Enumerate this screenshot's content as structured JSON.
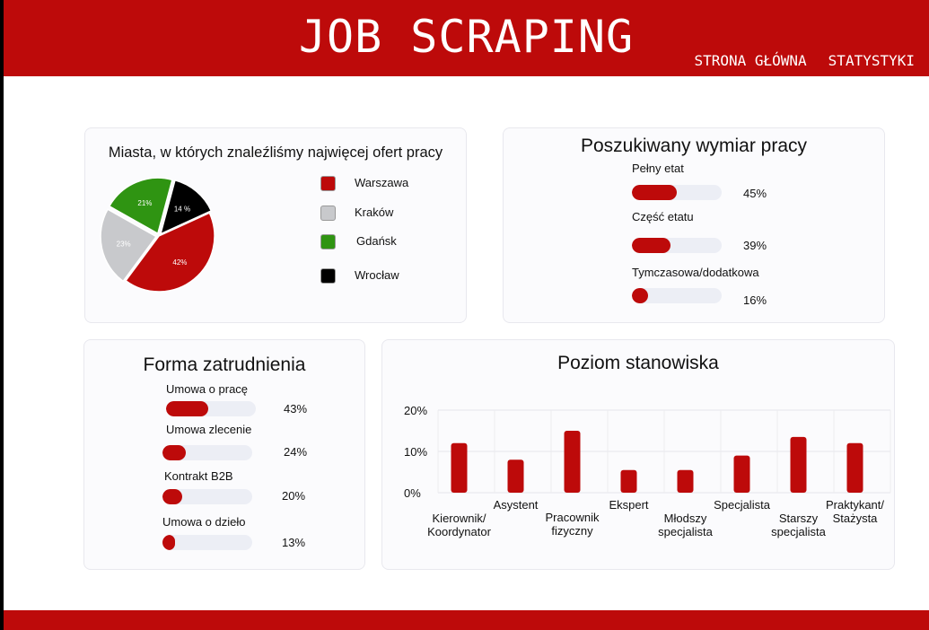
{
  "header": {
    "title": "JOB SCRAPING",
    "nav": [
      "STRONA GŁÓWNA",
      "STATYSTYKI"
    ]
  },
  "colors": {
    "brand_red": "#bd0a0a",
    "track": "#eceef5",
    "gray": "#c8c9cc",
    "green": "#2f9412",
    "black": "#000000"
  },
  "cities": {
    "title": "Miasta, w których znaleźliśmy najwięcej ofert pracy",
    "items": [
      {
        "label": "Warszawa",
        "pct_label": "42%",
        "value": 42,
        "color": "#bd0a0a"
      },
      {
        "label": "Kraków",
        "pct_label": "23%",
        "value": 23,
        "color": "#c8c9cc"
      },
      {
        "label": "Gdańsk",
        "pct_label": "21%",
        "value": 21,
        "color": "#2f9412"
      },
      {
        "label": "Wrocław",
        "pct_label": "14 %",
        "value": 14,
        "color": "#000000"
      }
    ]
  },
  "worktime": {
    "title": "Poszukiwany wymiar pracy",
    "items": [
      {
        "label": "Pełny etat",
        "pct_label": "45%",
        "value": 45
      },
      {
        "label": "Część etatu",
        "pct_label": "39%",
        "value": 39
      },
      {
        "label": "Tymczasowa/dodatkowa",
        "pct_label": "16%",
        "value": 16
      }
    ]
  },
  "contract": {
    "title": "Forma zatrudnienia",
    "items": [
      {
        "label": "Umowa o pracę",
        "pct_label": "43%",
        "value": 43
      },
      {
        "label": "Umowa zlecenie",
        "pct_label": "24%",
        "value": 24
      },
      {
        "label": "Kontrakt B2B",
        "pct_label": "20%",
        "value": 20
      },
      {
        "label": "Umowa o dzieło",
        "pct_label": "13%",
        "value": 13
      }
    ]
  },
  "chart_data": [
    {
      "type": "pie",
      "title": "Miasta, w których znaleźliśmy najwięcej ofert pracy",
      "categories": [
        "Warszawa",
        "Kraków",
        "Gdańsk",
        "Wrocław"
      ],
      "values": [
        42,
        23,
        21,
        14
      ],
      "legend": "right"
    },
    {
      "type": "bar",
      "title": "Poziom stanowiska",
      "categories": [
        "Kierownik/\nKoordynator",
        "Asystent",
        "Pracownik\nfizyczny",
        "Ekspert",
        "Młodszy\nspecjalista",
        "Specjalista",
        "Starszy\nspecjalista",
        "Praktykant/\nStażysta"
      ],
      "values": [
        12,
        8,
        15,
        5.5,
        5.5,
        9,
        13.5,
        12
      ],
      "yticks": [
        "20%",
        "10%",
        "0%"
      ],
      "ylim": [
        0,
        20
      ],
      "grid": true
    }
  ]
}
